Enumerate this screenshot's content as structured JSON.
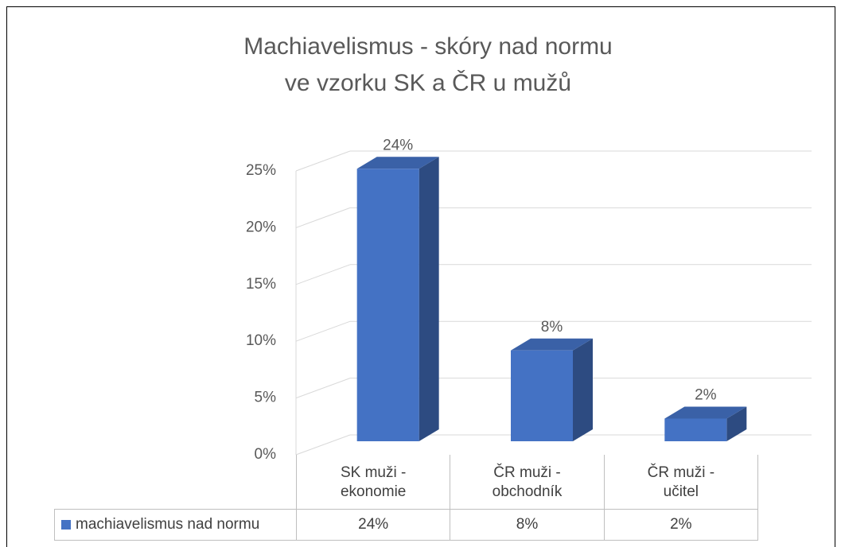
{
  "chart_data": {
    "type": "bar3d",
    "title": [
      "Machiavelismus - skóry nad normu",
      "ve vzorku SK a ČR u mužů"
    ],
    "categories": [
      "SK muži - ekonomie",
      "ČR muži - obchodník",
      "ČR muži - učitel"
    ],
    "series": [
      {
        "name": "machiavelismus nad normu",
        "color": "#4472c4",
        "values": [
          24,
          8,
          2
        ],
        "value_labels": [
          "24%",
          "8%",
          "2%"
        ]
      }
    ],
    "ylim": [
      0,
      25
    ],
    "yticks": [
      {
        "value": 0,
        "label": "0%"
      },
      {
        "value": 5,
        "label": "5%"
      },
      {
        "value": 10,
        "label": "10%"
      },
      {
        "value": 15,
        "label": "15%"
      },
      {
        "value": 20,
        "label": "20%"
      },
      {
        "value": 25,
        "label": "25%"
      }
    ],
    "grid": true,
    "data_table": true
  }
}
